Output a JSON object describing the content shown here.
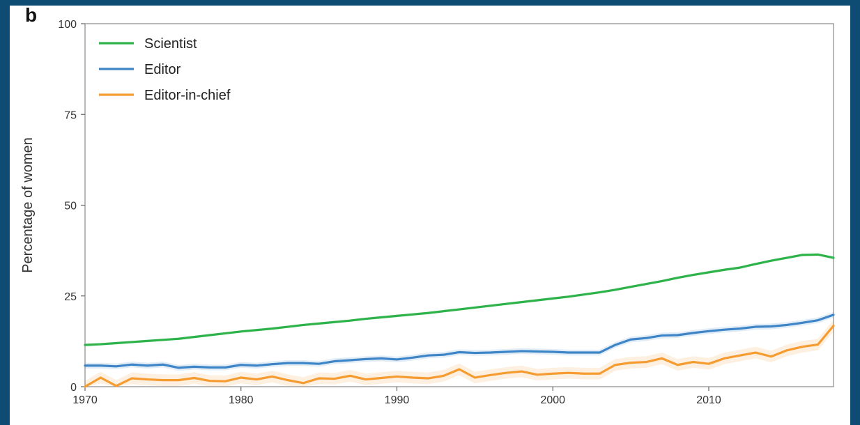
{
  "panel_label": "b",
  "chart_data": {
    "type": "line",
    "ylabel": "Percentage of women",
    "xlabel": "",
    "xlim": [
      1970,
      2018
    ],
    "ylim": [
      0,
      100
    ],
    "x_ticks": [
      1970,
      1980,
      1990,
      2000,
      2010
    ],
    "y_ticks": [
      0,
      25,
      50,
      75,
      100
    ],
    "grid": false,
    "legend_position": "top-left",
    "x": [
      1970,
      1971,
      1972,
      1973,
      1974,
      1975,
      1976,
      1977,
      1978,
      1979,
      1980,
      1981,
      1982,
      1983,
      1984,
      1985,
      1986,
      1987,
      1988,
      1989,
      1990,
      1991,
      1992,
      1993,
      1994,
      1995,
      1996,
      1997,
      1998,
      1999,
      2000,
      2001,
      2002,
      2003,
      2004,
      2005,
      2006,
      2007,
      2008,
      2009,
      2010,
      2011,
      2012,
      2013,
      2014,
      2015,
      2016,
      2017,
      2018
    ],
    "series": [
      {
        "name": "Scientist",
        "color": "#2db34a",
        "values": [
          11.5,
          11.7,
          12.0,
          12.3,
          12.6,
          12.9,
          13.2,
          13.7,
          14.2,
          14.7,
          15.2,
          15.6,
          16.0,
          16.5,
          17.0,
          17.4,
          17.8,
          18.2,
          18.7,
          19.1,
          19.5,
          19.9,
          20.3,
          20.8,
          21.3,
          21.8,
          22.3,
          22.8,
          23.3,
          23.8,
          24.3,
          24.8,
          25.4,
          26.0,
          26.7,
          27.5,
          28.3,
          29.1,
          30.0,
          30.8,
          31.5,
          32.2,
          32.8,
          33.8,
          34.7,
          35.5,
          36.3,
          36.4,
          35.5
        ]
      },
      {
        "name": "Editor",
        "color": "#3d85c6",
        "values": [
          5.8,
          5.8,
          5.6,
          6.1,
          5.8,
          6.1,
          5.2,
          5.5,
          5.3,
          5.3,
          6.0,
          5.8,
          6.2,
          6.5,
          6.5,
          6.3,
          7.0,
          7.3,
          7.6,
          7.8,
          7.5,
          8.0,
          8.6,
          8.8,
          9.5,
          9.3,
          9.4,
          9.6,
          9.8,
          9.7,
          9.6,
          9.4,
          9.4,
          9.4,
          11.5,
          13.0,
          13.4,
          14.1,
          14.2,
          14.8,
          15.3,
          15.7,
          16.0,
          16.5,
          16.6,
          17.0,
          17.6,
          18.3,
          19.8
        ]
      },
      {
        "name": "Editor-in-chief",
        "color": "#f59b2f",
        "values": [
          0.0,
          2.5,
          0.2,
          2.3,
          2.0,
          1.8,
          1.8,
          2.4,
          1.6,
          1.5,
          2.5,
          2.0,
          2.8,
          1.8,
          1.0,
          2.3,
          2.2,
          3.0,
          2.0,
          2.4,
          2.8,
          2.5,
          2.3,
          3.0,
          4.8,
          2.5,
          3.2,
          3.8,
          4.2,
          3.3,
          3.6,
          3.8,
          3.6,
          3.6,
          6.0,
          6.6,
          6.8,
          7.8,
          6.0,
          6.8,
          6.3,
          7.8,
          8.6,
          9.4,
          8.3,
          10.0,
          11.0,
          11.6,
          16.8
        ]
      }
    ]
  }
}
